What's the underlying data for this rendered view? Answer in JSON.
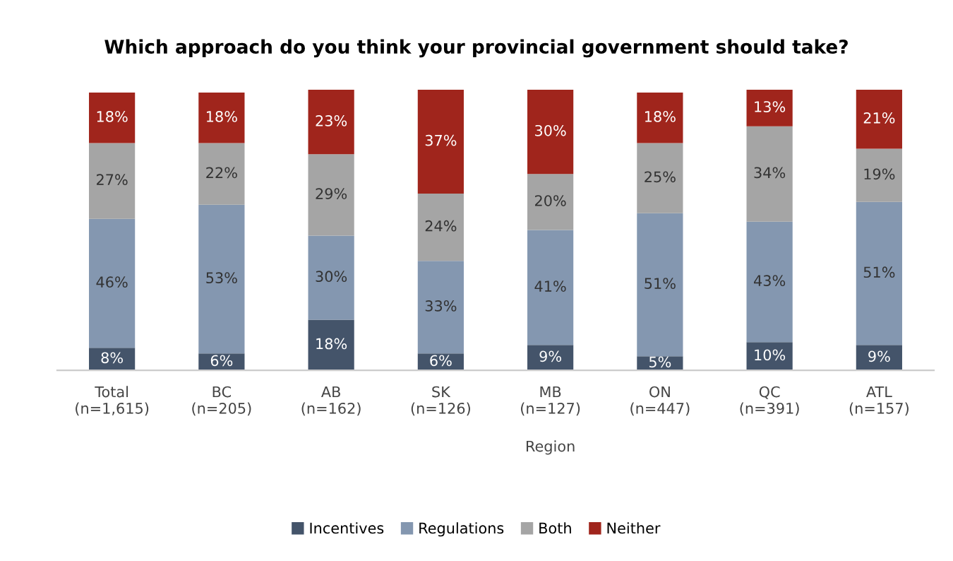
{
  "chart_data": {
    "type": "bar",
    "stacked": true,
    "title": "Which approach do you think your provincial government should take?",
    "categories": [
      "Total\n(n=1,615)",
      "BC\n(n=205)",
      "AB\n(n=162)",
      "SK\n(n=126)",
      "MB\n(n=127)",
      "ON\n(n=447)",
      "QC\n(n=391)",
      "ATL\n(n=157)"
    ],
    "xlabel": "Region",
    "series": [
      {
        "name": "Incentives",
        "color": "#44546a",
        "values": [
          8,
          6,
          18,
          6,
          9,
          5,
          10,
          9
        ],
        "value_labels": [
          "8%",
          "6%",
          "18%",
          "6%",
          "9%",
          "5%",
          "10%",
          "9%"
        ]
      },
      {
        "name": "Regulations",
        "color": "#8497b0",
        "values": [
          46,
          53,
          30,
          33,
          41,
          51,
          43,
          51
        ],
        "value_labels": [
          "46%",
          "53%",
          "30%",
          "33%",
          "41%",
          "51%",
          "43%",
          "51%"
        ]
      },
      {
        "name": "Both",
        "color": "#a5a5a5",
        "values": [
          27,
          22,
          29,
          24,
          20,
          25,
          34,
          19
        ],
        "value_labels": [
          "27%",
          "22%",
          "29%",
          "24%",
          "20%",
          "25%",
          "34%",
          "19%"
        ]
      },
      {
        "name": "Neither",
        "color": "#a0251c",
        "values": [
          18,
          18,
          23,
          37,
          30,
          18,
          13,
          21
        ],
        "value_labels": [
          "18%",
          "18%",
          "23%",
          "37%",
          "30%",
          "18%",
          "13%",
          "21%"
        ]
      }
    ],
    "legend": "bottom",
    "tick_labels": "x"
  }
}
